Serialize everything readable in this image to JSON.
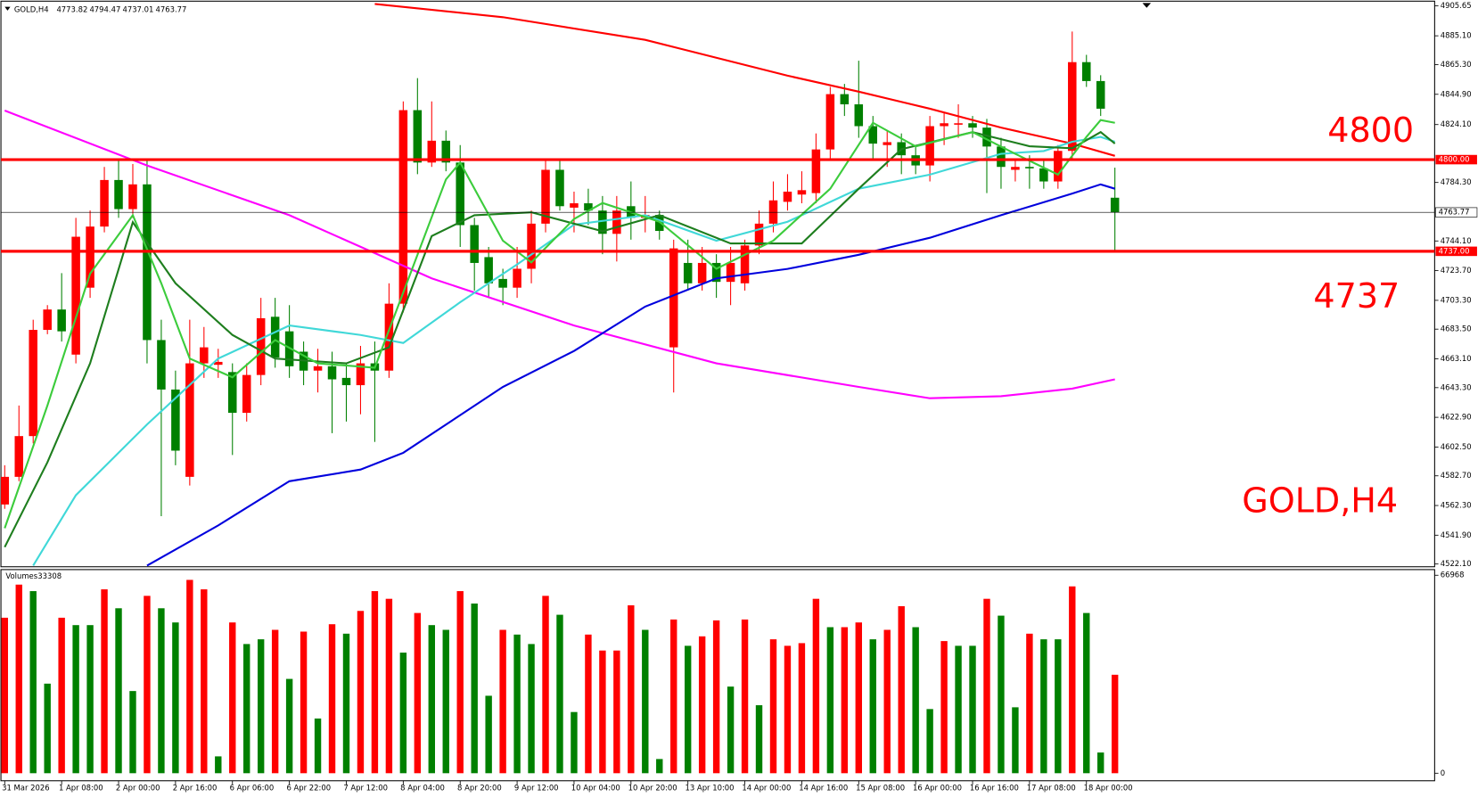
{
  "chart_data": {
    "type": "candlestick",
    "symbol": "GOLD,H4",
    "categories": [
      "31 Mar 2026",
      null,
      null,
      null,
      "1 Apr 08:00",
      null,
      null,
      null,
      "2 Apr 00:00",
      null,
      null,
      null,
      "2 Apr 16:00",
      null,
      null,
      null,
      "6 Apr 06:00",
      null,
      null,
      null,
      "6 Apr 22:00",
      null,
      null,
      null,
      "7 Apr 12:00",
      null,
      null,
      null,
      "8 Apr 04:00",
      null,
      null,
      null,
      "8 Apr 20:00",
      null,
      null,
      null,
      "9 Apr 12:00",
      null,
      null,
      null,
      "10 Apr 04:00",
      null,
      null,
      null,
      "10 Apr 20:00",
      null,
      null,
      null,
      "13 Apr 10:00",
      null,
      null,
      null,
      "14 Apr 00:00",
      null,
      null,
      null,
      "14 Apr 16:00",
      null,
      null,
      null,
      "15 Apr 08:00",
      null,
      null,
      null,
      "16 Apr 00:00",
      null,
      null,
      null,
      "16 Apr 16:00",
      null,
      null,
      null,
      "17 Apr 08:00",
      null,
      null,
      null,
      "18 Apr 00:00",
      null,
      null
    ],
    "open": [
      4563,
      4582,
      4610,
      4683,
      4697,
      4666,
      4712,
      4754,
      4786,
      4766,
      4783,
      4676,
      4642,
      4582,
      4660,
      4659,
      4654,
      4626,
      4652,
      4692,
      4682,
      4668,
      4655,
      4658,
      4650,
      4645,
      4660,
      4655,
      4701,
      4834,
      4798,
      4813,
      4798,
      4755,
      4733,
      4718,
      4712,
      4725,
      4756,
      4793,
      4767,
      4770,
      4765,
      4749,
      4768,
      4760,
      4762,
      4671,
      4729,
      4715,
      4729,
      4716,
      4715,
      4741,
      4756,
      4771,
      4776,
      4777,
      4807,
      4845,
      4838,
      4823,
      4810,
      4812,
      4803,
      4796,
      4823,
      4824,
      4825,
      4822,
      4809,
      4793,
      4795,
      4794,
      4785,
      4806,
      4867,
      4854,
      4773.82
    ],
    "high": [
      4590,
      4631,
      4690,
      4700,
      4722,
      4760,
      4765,
      4795,
      4800,
      4797,
      4800,
      4690,
      4655,
      4690,
      4685,
      4670,
      4660,
      4660,
      4705,
      4705,
      4700,
      4675,
      4670,
      4668,
      4660,
      4672,
      4675,
      4715,
      4840,
      4856,
      4840,
      4820,
      4810,
      4760,
      4740,
      4725,
      4740,
      4765,
      4800,
      4800,
      4778,
      4780,
      4775,
      4775,
      4785,
      4775,
      4765,
      4745,
      4745,
      4740,
      4735,
      4740,
      4745,
      4765,
      4785,
      4790,
      4792,
      4818,
      4850,
      4852,
      4868,
      4830,
      4820,
      4818,
      4810,
      4830,
      4832,
      4838,
      4830,
      4828,
      4815,
      4800,
      4803,
      4800,
      4810,
      4888,
      4872,
      4858,
      4794.47
    ],
    "low": [
      4560,
      4579,
      4605,
      4680,
      4675,
      4660,
      4705,
      4750,
      4760,
      4760,
      4660,
      4555,
      4590,
      4576,
      4650,
      4650,
      4597,
      4620,
      4645,
      4657,
      4650,
      4645,
      4640,
      4612,
      4620,
      4625,
      4606,
      4650,
      4695,
      4790,
      4795,
      4792,
      4740,
      4710,
      4705,
      4700,
      4705,
      4715,
      4750,
      4765,
      4750,
      4755,
      4735,
      4730,
      4745,
      4750,
      4745,
      4640,
      4710,
      4710,
      4705,
      4700,
      4710,
      4735,
      4750,
      4765,
      4770,
      4770,
      4800,
      4830,
      4815,
      4800,
      4795,
      4790,
      4790,
      4785,
      4810,
      4815,
      4815,
      4777,
      4780,
      4785,
      4780,
      4780,
      4780,
      4800,
      4850,
      4830,
      4737.01
    ],
    "close": [
      4582,
      4610,
      4683,
      4697,
      4682,
      4747,
      4754,
      4786,
      4766,
      4783,
      4676,
      4642,
      4600,
      4660,
      4671,
      4661,
      4626,
      4652,
      4691,
      4664,
      4658,
      4655,
      4658,
      4649,
      4645,
      4660,
      4655,
      4701,
      4834,
      4798,
      4813,
      4798,
      4755,
      4729,
      4715,
      4712,
      4725,
      4756,
      4793,
      4768,
      4770,
      4765,
      4749,
      4765,
      4760,
      4762,
      4751,
      4739,
      4715,
      4729,
      4716,
      4729,
      4741,
      4756,
      4772,
      4778,
      4779,
      4807,
      4845,
      4838,
      4823,
      4811,
      4812,
      4803,
      4796,
      4823,
      4825,
      4825,
      4822,
      4809,
      4795,
      4795,
      4794,
      4785,
      4806,
      4867,
      4854,
      4835,
      4763.77
    ],
    "up_color": "#ff0000",
    "down_color": "#008000",
    "ylim": [
      4520.2,
      4908.9
    ],
    "yticks": [
      {
        "value": 4905.65,
        "label": "4905.65"
      },
      {
        "value": 4885.1,
        "label": "4885.10"
      },
      {
        "value": 4865.3,
        "label": "4865.30"
      },
      {
        "value": 4844.9,
        "label": "4844.90"
      },
      {
        "value": 4824.1,
        "label": "4824.10"
      },
      {
        "value": 4784.3,
        "label": "4784.30"
      },
      {
        "value": 4744.1,
        "label": "4744.10"
      },
      {
        "value": 4723.7,
        "label": "4723.70"
      },
      {
        "value": 4703.3,
        "label": "4703.30"
      },
      {
        "value": 4683.5,
        "label": "4683.50"
      },
      {
        "value": 4663.1,
        "label": "4663.10"
      },
      {
        "value": 4643.3,
        "label": "4643.30"
      },
      {
        "value": 4622.9,
        "label": "4622.90"
      },
      {
        "value": 4602.5,
        "label": "4602.50"
      },
      {
        "value": 4582.7,
        "label": "4582.70"
      },
      {
        "value": 4562.3,
        "label": "4562.30"
      },
      {
        "value": 4541.9,
        "label": "4541.90"
      },
      {
        "value": 4522.1,
        "label": "4522.10"
      }
    ],
    "levels": {
      "values": [
        4800,
        4737
      ],
      "value_labels": [
        "4800.00",
        "4737.00"
      ],
      "color": "#ff0000"
    },
    "annotations": [
      "4800",
      "4737",
      "GOLD,H4"
    ],
    "series": [
      {
        "color": "#ff0000",
        "x": [
          26,
          35,
          45,
          55,
          60,
          65,
          70,
          75,
          78
        ],
        "values": [
          4907,
          4897.9,
          4882.3,
          4857.7,
          4846.7,
          4835,
          4822,
          4811,
          4802.6
        ]
      },
      {
        "color": "#ff00ff",
        "x": [
          0,
          10,
          20,
          30,
          40,
          50,
          60,
          65,
          70,
          75,
          78
        ],
        "values": [
          4833.7,
          4796,
          4761.8,
          4718.4,
          4686,
          4660,
          4643.8,
          4636,
          4637.4,
          4642.6,
          4649
        ]
      },
      {
        "color": "#0000dd",
        "x": [
          10,
          15,
          20,
          25,
          28,
          35,
          40,
          45,
          50,
          55,
          60,
          65,
          70,
          75,
          77,
          78
        ],
        "values": [
          4521,
          4548.6,
          4579,
          4587,
          4598.5,
          4643.8,
          4668.5,
          4699,
          4718.4,
          4724.9,
          4734.6,
          4746.3,
          4761.8,
          4776.7,
          4783,
          4780
        ]
      },
      {
        "color": "#40d8d8",
        "x": [
          2,
          5,
          10,
          15,
          20,
          25,
          28,
          32,
          36,
          40,
          45,
          50,
          55,
          60,
          65,
          70,
          73,
          75,
          77,
          78
        ],
        "values": [
          4521,
          4569.4,
          4618,
          4663.3,
          4686,
          4679.5,
          4674,
          4702,
          4728,
          4755.3,
          4761.8,
          4744.3,
          4757.3,
          4780,
          4789.7,
          4804,
          4805.9,
          4812.3,
          4815.6,
          4812.3
        ]
      },
      {
        "color": "#1e7e1e",
        "x": [
          0,
          3,
          6,
          9,
          12,
          16,
          19,
          24,
          27,
          30,
          33,
          37,
          42,
          46,
          51,
          56,
          60,
          63,
          68,
          72,
          75,
          77,
          78
        ],
        "values": [
          4533.7,
          4592,
          4660,
          4757,
          4715,
          4679.5,
          4663.3,
          4660,
          4671,
          4747.5,
          4761.8,
          4763.8,
          4750.8,
          4761.8,
          4742.4,
          4742.4,
          4780,
          4807.2,
          4818.9,
          4809.2,
          4807.8,
          4818.9,
          4811
        ]
      },
      {
        "color": "#3ccc3c",
        "x": [
          0,
          3,
          6,
          9,
          11,
          13,
          16,
          19,
          22,
          26,
          28,
          31,
          32,
          35,
          37,
          40,
          42,
          46,
          50,
          54,
          58,
          61,
          64,
          68,
          71,
          74,
          76,
          77,
          78
        ],
        "values": [
          4546.7,
          4631,
          4721.6,
          4761.8,
          4715,
          4663.3,
          4650.4,
          4676,
          4660,
          4657,
          4708.7,
          4786.4,
          4798,
          4744.3,
          4729.4,
          4759.2,
          4770.2,
          4757.3,
          4725,
          4744.3,
          4780,
          4825.3,
          4809.1,
          4818.9,
          4804,
          4789.7,
          4815.6,
          4827.2,
          4825.3
        ]
      }
    ],
    "volume": {
      "label": "Volumes",
      "values": [
        52600,
        63800,
        61600,
        30300,
        52600,
        50100,
        50100,
        62200,
        55800,
        27800,
        60000,
        55800,
        51000,
        65400,
        62200,
        5700,
        51000,
        43700,
        45300,
        48500,
        31900,
        47900,
        18500,
        50400,
        47200,
        54900,
        61600,
        59000,
        40800,
        54200,
        50100,
        48500,
        61600,
        57400,
        26200,
        48500,
        46900,
        43700,
        60000,
        53600,
        20700,
        46900,
        41500,
        41500,
        56800,
        48500,
        4800,
        52000,
        43100,
        46300,
        51700,
        29300,
        52000,
        23000,
        45300,
        43100,
        44000,
        59000,
        49400,
        49400,
        51000,
        45300,
        48500,
        56500,
        49400,
        21700,
        44700,
        43100,
        43100,
        59000,
        53300,
        22300,
        47200,
        45300,
        45300,
        63200,
        54200,
        7000,
        33308
      ],
      "colors": [
        "#ff0000",
        "#ff0000",
        "#008000",
        "#008000",
        "#ff0000",
        "#008000",
        "#008000",
        "#ff0000",
        "#008000",
        "#008000",
        "#ff0000",
        "#008000",
        "#008000",
        "#ff0000",
        "#ff0000",
        "#008000",
        "#ff0000",
        "#008000",
        "#008000",
        "#ff0000",
        "#008000",
        "#ff0000",
        "#008000",
        "#ff0000",
        "#008000",
        "#ff0000",
        "#ff0000",
        "#ff0000",
        "#008000",
        "#ff0000",
        "#008000",
        "#008000",
        "#ff0000",
        "#008000",
        "#008000",
        "#ff0000",
        "#008000",
        "#008000",
        "#ff0000",
        "#008000",
        "#008000",
        "#ff0000",
        "#ff0000",
        "#ff0000",
        "#ff0000",
        "#008000",
        "#008000",
        "#ff0000",
        "#008000",
        "#ff0000",
        "#ff0000",
        "#008000",
        "#ff0000",
        "#008000",
        "#ff0000",
        "#ff0000",
        "#ff0000",
        "#ff0000",
        "#008000",
        "#ff0000",
        "#ff0000",
        "#008000",
        "#ff0000",
        "#ff0000",
        "#008000",
        "#008000",
        "#ff0000",
        "#008000",
        "#008000",
        "#ff0000",
        "#008000",
        "#008000",
        "#ff0000",
        "#008000",
        "#008000",
        "#ff0000",
        "#008000",
        "#008000",
        "#ff0000"
      ],
      "ylim": [
        0,
        66968
      ],
      "yticks": [
        0,
        66968
      ]
    }
  }
}
